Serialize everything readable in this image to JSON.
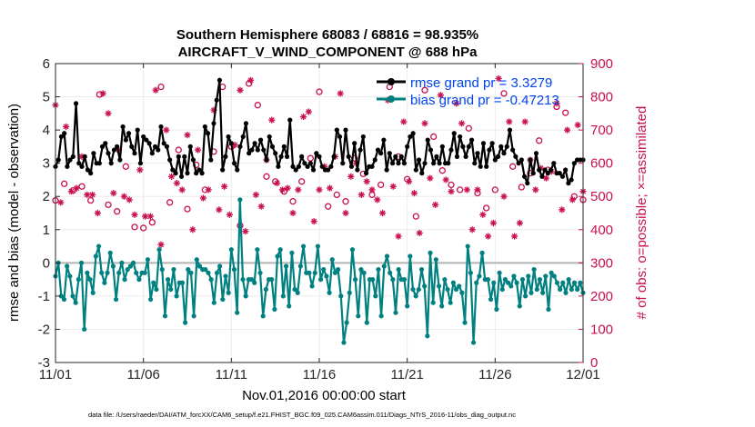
{
  "chart_data": {
    "type": "line",
    "title": "Southern Hemisphere 68083 / 68816 = 98.935%",
    "subtitle": "AIRCRAFT_V_WIND_COMPONENT @ 688 hPa",
    "xlabel": "Nov.01,2016 00:00:00 start",
    "ylabel_left": "rmse and bias (model - observation)",
    "ylabel_right": "# of obs: o=possible; ×=assimilated",
    "x_tick_labels": [
      "11/01",
      "11/06",
      "11/11",
      "11/16",
      "11/21",
      "11/26",
      "12/01"
    ],
    "y_left_tick_labels": [
      "-3",
      "-2",
      "-1",
      "0",
      "1",
      "2",
      "3",
      "4",
      "5",
      "6"
    ],
    "y_right_tick_labels": [
      "0",
      "100",
      "200",
      "300",
      "400",
      "500",
      "600",
      "700",
      "800",
      "900"
    ],
    "xlim_days": [
      0,
      30
    ],
    "ylim_left": [
      -3,
      6
    ],
    "ylim_right": [
      0,
      900
    ],
    "grid": true,
    "legend_position": "top-right",
    "legend": [
      {
        "name": "rmse grand pr = 3.3279",
        "color": "#0044ee"
      },
      {
        "name": "bias grand pr = -0.47213",
        "color": "#0044ee"
      }
    ],
    "colors": {
      "rmse": "#000000",
      "bias": "#008080",
      "obs": "#c8104f",
      "zero_line": "#b3b3b3",
      "legend_text": "#0044ee",
      "grid": "#ebebeb"
    },
    "footnote": "data file: /Users/raeder/DAI/ATM_forcXX/CAM6_setup/f.e21.FHIST_BGC.f09_025.CAM6assim.011/Diags_NTrS_2016-11/obs_diag_output.nc",
    "series": [
      {
        "name": "rmse",
        "values": [
          2.9,
          3.1,
          3.8,
          3.9,
          2.9,
          3.1,
          3.2,
          4.8,
          3.0,
          2.9,
          3.2,
          2.8,
          2.7,
          3.3,
          3.0,
          3.0,
          3.5,
          3.6,
          3.3,
          3.0,
          3.4,
          3.5,
          3.1,
          4.1,
          3.7,
          3.9,
          3.5,
          3.3,
          4.0,
          3.0,
          3.8,
          3.7,
          3.6,
          3.3,
          3.5,
          3.4,
          4.1,
          3.6,
          3.5,
          3.1,
          2.8,
          2.7,
          3.2,
          2.6,
          3.2,
          2.7,
          3.5,
          3.1,
          2.7,
          2.8,
          2.7,
          4.1,
          3.9,
          3.1,
          4.2,
          4.9,
          5.5,
          2.8,
          3.2,
          3.8,
          3.6,
          3.0,
          2.8,
          3.5,
          3.8,
          4.2,
          3.3,
          3.4,
          3.6,
          3.4,
          3.7,
          3.4,
          3.1,
          3.8,
          3.5,
          3.3,
          2.9,
          3.2,
          3.5,
          3.2,
          4.3,
          2.9,
          2.8,
          2.9,
          3.2,
          3.0,
          2.9,
          3.0,
          2.8,
          3.3,
          3.2,
          2.9,
          2.8,
          2.8,
          2.9,
          3.2,
          4.0,
          3.8,
          3.0,
          4.0,
          3.2,
          2.9,
          3.6,
          2.8,
          3.4,
          3.8,
          2.7,
          2.9,
          2.9,
          3.1,
          3.4,
          3.3,
          3.7,
          2.8,
          3.3,
          3.0,
          3.2,
          3.0,
          3.2,
          3.0,
          3.5,
          3.8,
          3.9,
          2.8,
          3.1,
          2.7,
          3.0,
          3.7,
          3.4,
          3.0,
          3.2,
          3.0,
          3.5,
          3.0,
          3.0,
          3.4,
          3.9,
          3.2,
          3.8,
          3.5,
          3.2,
          3.5,
          3.7,
          3.0,
          3.3,
          2.9,
          3.6,
          2.9,
          3.4,
          3.6,
          3.1,
          3.2,
          3.5,
          3.3,
          3.5,
          4.0,
          3.4,
          3.2,
          3.0,
          3.1,
          2.6,
          2.4,
          3.1,
          2.7,
          3.3,
          2.8,
          2.6,
          2.8,
          2.7,
          2.8,
          3.0,
          2.7,
          2.7,
          2.6,
          2.8,
          2.4,
          2.5,
          3.0,
          3.1,
          3.1,
          3.1
        ]
      },
      {
        "name": "bias",
        "values": [
          -0.4,
          0.0,
          -1.0,
          -1.1,
          -0.1,
          -0.4,
          -1.0,
          -1.2,
          -0.5,
          0.0,
          -2.0,
          -0.3,
          -0.5,
          -0.9,
          0.2,
          0.5,
          -0.3,
          -0.6,
          -0.3,
          0.3,
          -0.1,
          -1.1,
          -0.3,
          0.0,
          -0.5,
          -0.2,
          -0.1,
          0.0,
          -0.3,
          -0.5,
          -0.3,
          -0.3,
          0.1,
          -1.1,
          -0.6,
          -0.8,
          0.4,
          -0.2,
          -1.6,
          -0.5,
          -0.8,
          -0.2,
          -1.0,
          -0.6,
          -0.6,
          -1.8,
          -0.2,
          -0.3,
          -1.6,
          0.1,
          -0.1,
          -0.2,
          -0.2,
          -0.3,
          -0.5,
          -1.2,
          -0.3,
          -0.1,
          -1.1,
          -0.4,
          -0.9,
          0.4,
          -0.2,
          -1.5,
          1.9,
          -0.5,
          -1.0,
          -0.5,
          -0.5,
          -0.6,
          0.4,
          -0.3,
          -1.6,
          -0.8,
          -0.5,
          -0.5,
          -1.4,
          0.2,
          0.4,
          -1.0,
          -0.1,
          -1.3,
          0.3,
          -0.8,
          -0.9,
          -0.1,
          0.5,
          -0.3,
          -0.3,
          -0.7,
          -0.3,
          0.5,
          -0.5,
          -0.2,
          -0.4,
          -0.9,
          0.1,
          -0.3,
          -0.2,
          -1.0,
          -2.4,
          -1.8,
          -0.9,
          0.4,
          -0.5,
          -1.6,
          -0.2,
          -0.3,
          -1.8,
          -0.5,
          -0.5,
          -1.0,
          -0.2,
          -1.6,
          -0.1,
          0.2,
          -0.3,
          -0.5,
          -1.5,
          -0.2,
          -0.5,
          -0.5,
          -1.3,
          0.2,
          -0.8,
          -1.0,
          -0.8,
          -0.2,
          -0.7,
          -2.2,
          0.3,
          -1.2,
          0.1,
          -0.7,
          -1.3,
          -0.5,
          -0.8,
          -1.2,
          -0.6,
          -0.8,
          -0.7,
          -0.9,
          -1.8,
          0.5,
          -0.3,
          -2.4,
          -0.6,
          -0.4,
          0.3,
          -0.5,
          -0.5,
          -1.1,
          -0.6,
          -1.4,
          -0.3,
          -0.8,
          -0.5,
          -0.6,
          -0.7,
          -0.4,
          -0.6,
          -1.3,
          -0.5,
          -1.0,
          -0.4,
          -0.9,
          -0.2,
          -0.8,
          -0.5,
          -0.9,
          -0.4,
          -1.4,
          -0.3,
          -0.4,
          -0.6,
          -0.8,
          -0.6,
          -0.9,
          -0.5,
          -0.8,
          -0.6,
          -0.8,
          -0.6,
          -0.9
        ]
      },
      {
        "name": "obs_possible",
        "points": [
          [
            0.0,
            488
          ],
          [
            0.5,
            538
          ],
          [
            1.0,
            518
          ],
          [
            1.5,
            530
          ],
          [
            2.0,
            488
          ],
          [
            2.5,
            807
          ],
          [
            3.0,
            475
          ],
          [
            3.5,
            455
          ],
          [
            4.0,
            590
          ],
          [
            4.5,
            408
          ],
          [
            5.0,
            405
          ],
          [
            5.5,
            422
          ],
          [
            6.0,
            830
          ],
          [
            6.5,
            482
          ],
          [
            7.0,
            640
          ],
          [
            7.5,
            462
          ],
          [
            8.0,
            595
          ],
          [
            8.5,
            520
          ],
          [
            9.0,
            635
          ],
          [
            9.5,
            830
          ],
          [
            10.0,
            650
          ],
          [
            10.5,
            412
          ],
          [
            11.0,
            840
          ],
          [
            11.5,
            775
          ],
          [
            12.0,
            560
          ],
          [
            12.5,
            545
          ],
          [
            13.0,
            515
          ],
          [
            13.5,
            485
          ],
          [
            14.0,
            545
          ],
          [
            14.5,
            615
          ],
          [
            15.0,
            815
          ],
          [
            15.5,
            470
          ],
          [
            16.0,
            505
          ],
          [
            16.5,
            485
          ],
          [
            17.0,
            615
          ],
          [
            17.5,
            568
          ],
          [
            18.0,
            505
          ],
          [
            18.5,
            535
          ],
          [
            19.0,
            830
          ],
          [
            19.5,
            620
          ],
          [
            20.0,
            552
          ],
          [
            20.5,
            440
          ],
          [
            21.0,
            820
          ],
          [
            21.5,
            680
          ],
          [
            22.0,
            578
          ],
          [
            22.5,
            535
          ],
          [
            23.0,
            520
          ],
          [
            23.5,
            705
          ],
          [
            24.0,
            510
          ],
          [
            24.5,
            465
          ],
          [
            25.0,
            520
          ],
          [
            25.5,
            810
          ],
          [
            26.0,
            590
          ],
          [
            26.5,
            528
          ],
          [
            27.0,
            570
          ],
          [
            27.5,
            668
          ],
          [
            28.0,
            580
          ],
          [
            28.5,
            770
          ],
          [
            29.0,
            752
          ],
          [
            29.5,
            500
          ],
          [
            30.0,
            490
          ]
        ]
      },
      {
        "name": "obs_assimilated",
        "points": [
          [
            0.0,
            775
          ],
          [
            0.3,
            482
          ],
          [
            0.6,
            710
          ],
          [
            0.9,
            515
          ],
          [
            1.2,
            525
          ],
          [
            1.5,
            620
          ],
          [
            1.8,
            505
          ],
          [
            2.1,
            505
          ],
          [
            2.4,
            450
          ],
          [
            2.7,
            810
          ],
          [
            3.0,
            750
          ],
          [
            3.3,
            510
          ],
          [
            3.6,
            640
          ],
          [
            3.9,
            500
          ],
          [
            4.2,
            490
          ],
          [
            4.5,
            445
          ],
          [
            4.8,
            580
          ],
          [
            5.1,
            440
          ],
          [
            5.4,
            440
          ],
          [
            5.7,
            820
          ],
          [
            6.0,
            355
          ],
          [
            6.3,
            700
          ],
          [
            6.6,
            560
          ],
          [
            6.9,
            540
          ],
          [
            7.2,
            520
          ],
          [
            7.5,
            685
          ],
          [
            7.8,
            400
          ],
          [
            8.1,
            640
          ],
          [
            8.4,
            495
          ],
          [
            8.7,
            520
          ],
          [
            9.0,
            760
          ],
          [
            9.3,
            460
          ],
          [
            9.6,
            530
          ],
          [
            9.9,
            445
          ],
          [
            10.2,
            655
          ],
          [
            10.5,
            820
          ],
          [
            10.8,
            395
          ],
          [
            11.1,
            850
          ],
          [
            11.4,
            505
          ],
          [
            11.7,
            470
          ],
          [
            12.0,
            610
          ],
          [
            12.3,
            730
          ],
          [
            12.6,
            540
          ],
          [
            12.9,
            520
          ],
          [
            13.2,
            525
          ],
          [
            13.5,
            450
          ],
          [
            13.8,
            520
          ],
          [
            14.1,
            740
          ],
          [
            14.4,
            755
          ],
          [
            14.7,
            425
          ],
          [
            15.0,
            520
          ],
          [
            15.3,
            590
          ],
          [
            15.6,
            525
          ],
          [
            15.9,
            620
          ],
          [
            16.2,
            810
          ],
          [
            16.5,
            450
          ],
          [
            16.8,
            560
          ],
          [
            17.1,
            600
          ],
          [
            17.4,
            505
          ],
          [
            17.7,
            545
          ],
          [
            18.0,
            520
          ],
          [
            18.3,
            490
          ],
          [
            18.6,
            450
          ],
          [
            18.9,
            790
          ],
          [
            19.2,
            530
          ],
          [
            19.5,
            380
          ],
          [
            19.8,
            725
          ],
          [
            20.1,
            545
          ],
          [
            20.4,
            510
          ],
          [
            20.7,
            390
          ],
          [
            21.0,
            720
          ],
          [
            21.3,
            555
          ],
          [
            21.6,
            475
          ],
          [
            21.9,
            805
          ],
          [
            22.2,
            550
          ],
          [
            22.5,
            515
          ],
          [
            22.8,
            780
          ],
          [
            23.1,
            720
          ],
          [
            23.4,
            520
          ],
          [
            23.7,
            400
          ],
          [
            24.0,
            520
          ],
          [
            24.3,
            445
          ],
          [
            24.6,
            380
          ],
          [
            24.9,
            420
          ],
          [
            25.2,
            855
          ],
          [
            25.5,
            500
          ],
          [
            25.8,
            725
          ],
          [
            26.1,
            380
          ],
          [
            26.4,
            420
          ],
          [
            26.7,
            725
          ],
          [
            27.0,
            610
          ],
          [
            27.3,
            520
          ],
          [
            27.6,
            585
          ],
          [
            27.9,
            555
          ],
          [
            28.2,
            575
          ],
          [
            28.5,
            780
          ],
          [
            28.8,
            460
          ],
          [
            29.1,
            700
          ],
          [
            29.4,
            490
          ],
          [
            29.7,
            715
          ],
          [
            30.0,
            515
          ]
        ]
      }
    ]
  }
}
